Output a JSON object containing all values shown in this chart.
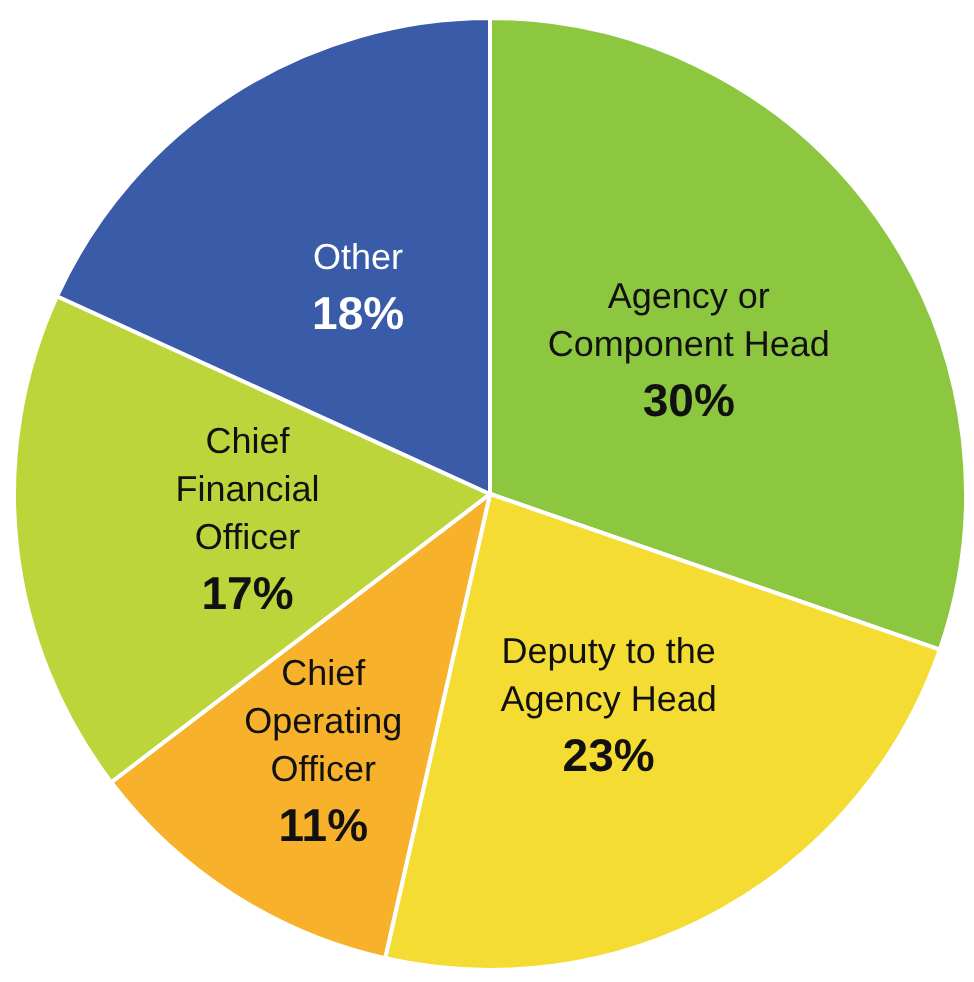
{
  "chart_data": {
    "type": "pie",
    "categories": [
      "Agency or Component Head",
      "Deputy to the Agency Head",
      "Chief Operating Officer",
      "Chief Financial Officer",
      "Other"
    ],
    "values": [
      30,
      23,
      11,
      17,
      18
    ],
    "value_labels": [
      "30%",
      "23%",
      "11%",
      "17%",
      "18%"
    ],
    "colors": [
      "#8dc63f",
      "#f5dc33",
      "#f7b12b",
      "#bcd53a",
      "#3a5ba8"
    ],
    "legend": false
  }
}
